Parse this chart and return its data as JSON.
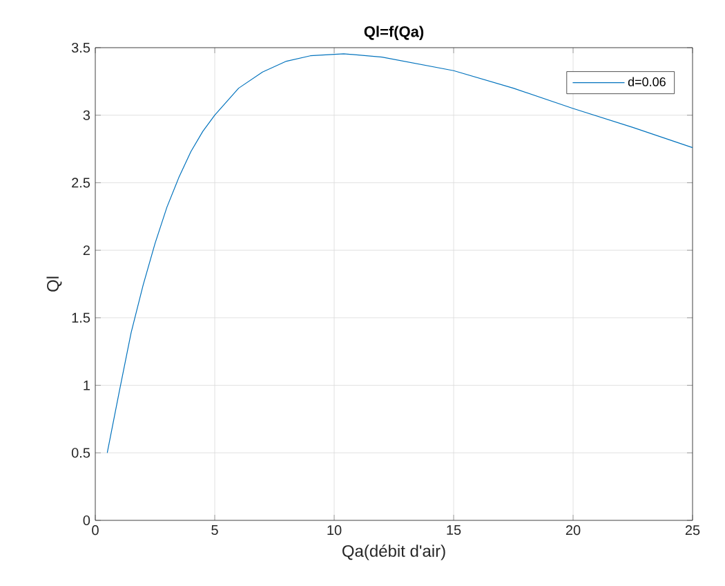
{
  "chart_data": {
    "type": "line",
    "title": "Ql=f(Qa)",
    "xlabel": "Qa(débit d'air)",
    "ylabel": "Ql",
    "xlim": [
      0,
      25
    ],
    "ylim": [
      0,
      3.5
    ],
    "xticks": [
      0,
      5,
      10,
      15,
      20,
      25
    ],
    "yticks": [
      0,
      0.5,
      1,
      1.5,
      2,
      2.5,
      3,
      3.5
    ],
    "grid": true,
    "legend": "top right",
    "marker": "none",
    "line_style": "solid",
    "series": [
      {
        "name": "d=0.06",
        "color": "#0072bd",
        "x": [
          0.5,
          1,
          1.5,
          2,
          2.5,
          3,
          3.5,
          4,
          4.5,
          5,
          6,
          7,
          8,
          9,
          10.4,
          12,
          15,
          17.5,
          20,
          22.5,
          25
        ],
        "values": [
          0.5,
          0.95,
          1.39,
          1.74,
          2.05,
          2.32,
          2.54,
          2.73,
          2.88,
          3.0,
          3.2,
          3.32,
          3.4,
          3.44,
          3.455,
          3.43,
          3.33,
          3.2,
          3.05,
          2.91,
          2.76
        ]
      }
    ]
  }
}
